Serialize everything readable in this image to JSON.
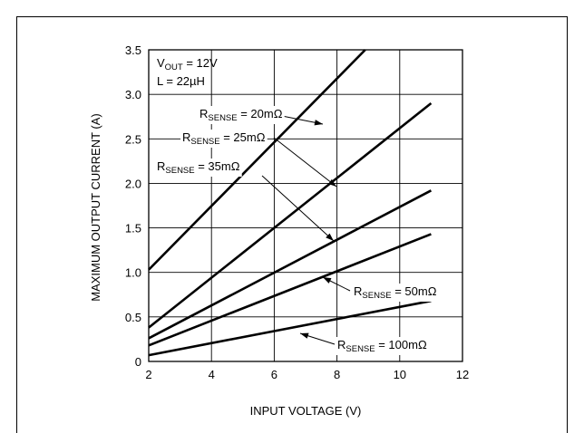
{
  "chart_data": {
    "type": "line",
    "xlabel": "INPUT VOLTAGE (V)",
    "ylabel": "MAXIMUM OUTPUT CURRENT (A)",
    "xlim": [
      2,
      12
    ],
    "ylim": [
      0,
      3.5
    ],
    "x_ticks": [
      "2",
      "4",
      "6",
      "8",
      "10",
      "12"
    ],
    "y_ticks": [
      "0",
      "0.5",
      "1.0",
      "1.5",
      "2.0",
      "2.5",
      "3.0",
      "3.5"
    ],
    "grid": true,
    "conditions": {
      "vout_prefix": "V",
      "vout_sub": "OUT",
      "vout_value": " = 12V",
      "inductance": "L = 22µH"
    },
    "series": [
      {
        "name": "RSENSE = 20mΩ",
        "label_prefix": "R",
        "label_sub": "SENSE",
        "label_value": " = 20mΩ",
        "x": [
          2,
          8.9
        ],
        "y": [
          1.03,
          3.5
        ]
      },
      {
        "name": "RSENSE = 25mΩ",
        "label_prefix": "R",
        "label_sub": "SENSE",
        "label_value": " = 25mΩ",
        "x": [
          2,
          11
        ],
        "y": [
          0.38,
          2.9
        ]
      },
      {
        "name": "RSENSE = 35mΩ",
        "label_prefix": "R",
        "label_sub": "SENSE",
        "label_value": " = 35mΩ",
        "x": [
          2,
          11
        ],
        "y": [
          0.26,
          1.92
        ]
      },
      {
        "name": "RSENSE = 50mΩ",
        "label_prefix": "R",
        "label_sub": "SENSE",
        "label_value": " = 50mΩ",
        "x": [
          2,
          11
        ],
        "y": [
          0.18,
          1.43
        ]
      },
      {
        "name": "RSENSE = 100mΩ",
        "label_prefix": "R",
        "label_sub": "SENSE",
        "label_value": " = 100mΩ",
        "x": [
          2,
          11
        ],
        "y": [
          0.07,
          0.68
        ]
      }
    ]
  }
}
